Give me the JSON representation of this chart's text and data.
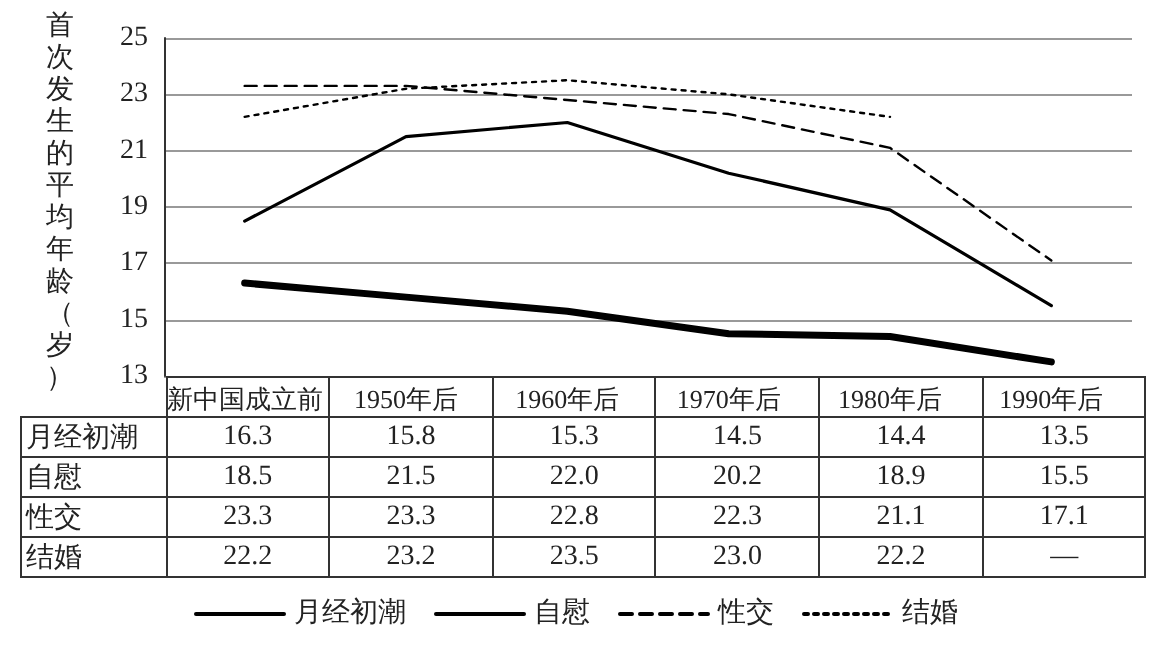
{
  "chart_data": {
    "type": "line",
    "ylabel": "首次发生的平均年龄（岁）",
    "categories": [
      "新中国成立前",
      "1950年后",
      "1960年后",
      "1970年后",
      "1980年后",
      "1990年后"
    ],
    "series": [
      {
        "name": "月经初潮",
        "color": "#000000",
        "line_style": "solid",
        "values": [
          16.3,
          15.8,
          15.3,
          14.5,
          14.4,
          13.5
        ],
        "value_labels": [
          "16.3",
          "15.8",
          "15.3",
          "14.5",
          "14.4",
          "13.5"
        ]
      },
      {
        "name": "自慰",
        "color": "#000000",
        "line_style": "solid",
        "values": [
          18.5,
          21.5,
          22.0,
          20.2,
          18.9,
          15.5
        ],
        "value_labels": [
          "18.5",
          "21.5",
          "22.0",
          "20.2",
          "18.9",
          "15.5"
        ]
      },
      {
        "name": "性交",
        "color": "#000000",
        "line_style": "dashed",
        "values": [
          23.3,
          23.3,
          22.8,
          22.3,
          21.1,
          17.1
        ],
        "value_labels": [
          "23.3",
          "23.3",
          "22.8",
          "22.3",
          "21.1",
          "17.1"
        ]
      },
      {
        "name": "结婚",
        "color": "#000000",
        "line_style": "dotted",
        "values": [
          22.2,
          23.2,
          23.5,
          23.0,
          22.2,
          null
        ],
        "value_labels": [
          "22.2",
          "23.2",
          "23.5",
          "23.0",
          "22.2",
          "—"
        ]
      }
    ],
    "ylim": [
      13,
      25
    ],
    "yticks": [
      13,
      15,
      17,
      19,
      21,
      23,
      25
    ],
    "grid": "y",
    "legend": "bottom",
    "marker": "none"
  }
}
